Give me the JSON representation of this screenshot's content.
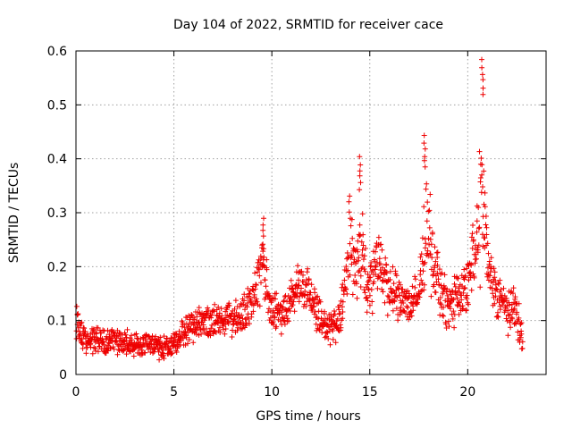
{
  "chart_data": {
    "type": "scatter",
    "title": "Day 104 of 2022, SRMTID for receiver cace",
    "xlabel": "GPS time / hours",
    "ylabel": "SRMTID / TECUs",
    "xlim": [
      0,
      24
    ],
    "ylim": [
      0,
      0.6
    ],
    "xticks": [
      0,
      5,
      10,
      15,
      20
    ],
    "xtick_labels": [
      "0",
      "5",
      "10",
      "15",
      "20"
    ],
    "yticks": [
      0,
      0.1,
      0.2,
      0.3,
      0.4,
      0.5,
      0.6
    ],
    "ytick_labels": [
      "0",
      "0.1",
      "0.2",
      "0.3",
      "0.4",
      "0.5",
      "0.6"
    ],
    "grid": true,
    "marker": "+",
    "color": "#ee0000",
    "envelope_x": [
      0,
      0.2,
      0.5,
      1,
      1.5,
      2,
      2.5,
      3,
      3.5,
      4,
      4.5,
      5,
      5.5,
      6,
      6.5,
      7,
      7.5,
      8,
      8.5,
      9,
      9.2,
      9.5,
      9.7,
      10,
      10.5,
      11,
      11.5,
      12,
      12.5,
      13,
      13.5,
      13.8,
      14,
      14.3,
      14.5,
      14.7,
      15,
      15.3,
      15.5,
      16,
      16.5,
      17,
      17.5,
      17.8,
      18,
      18.2,
      18.5,
      19,
      19.5,
      20,
      20.3,
      20.5,
      20.7,
      20.9,
      21,
      21.5,
      22,
      22.5,
      22.8
    ],
    "envelope_mean": [
      0.1,
      0.08,
      0.06,
      0.065,
      0.06,
      0.065,
      0.06,
      0.055,
      0.055,
      0.05,
      0.05,
      0.06,
      0.08,
      0.09,
      0.095,
      0.1,
      0.1,
      0.1,
      0.105,
      0.14,
      0.17,
      0.2,
      0.17,
      0.12,
      0.11,
      0.14,
      0.17,
      0.15,
      0.1,
      0.09,
      0.1,
      0.2,
      0.25,
      0.2,
      0.25,
      0.2,
      0.15,
      0.2,
      0.22,
      0.15,
      0.14,
      0.13,
      0.14,
      0.25,
      0.3,
      0.2,
      0.17,
      0.12,
      0.15,
      0.16,
      0.22,
      0.25,
      0.35,
      0.28,
      0.2,
      0.15,
      0.12,
      0.12,
      0.06
    ],
    "envelope_spread": [
      0.04,
      0.03,
      0.025,
      0.03,
      0.03,
      0.03,
      0.03,
      0.025,
      0.025,
      0.025,
      0.025,
      0.025,
      0.03,
      0.035,
      0.035,
      0.035,
      0.04,
      0.04,
      0.04,
      0.05,
      0.06,
      0.08,
      0.06,
      0.04,
      0.04,
      0.04,
      0.05,
      0.05,
      0.04,
      0.04,
      0.04,
      0.08,
      0.1,
      0.08,
      0.12,
      0.08,
      0.06,
      0.08,
      0.08,
      0.06,
      0.05,
      0.05,
      0.05,
      0.1,
      0.12,
      0.08,
      0.06,
      0.05,
      0.06,
      0.06,
      0.08,
      0.1,
      0.2,
      0.1,
      0.06,
      0.05,
      0.05,
      0.05,
      0.03
    ],
    "sample_count": 1500,
    "peaks": [
      {
        "x": 20.75,
        "y": 0.585
      },
      {
        "x": 17.8,
        "y": 0.445
      },
      {
        "x": 14.5,
        "y": 0.405
      },
      {
        "x": 9.55,
        "y": 0.295
      }
    ]
  }
}
